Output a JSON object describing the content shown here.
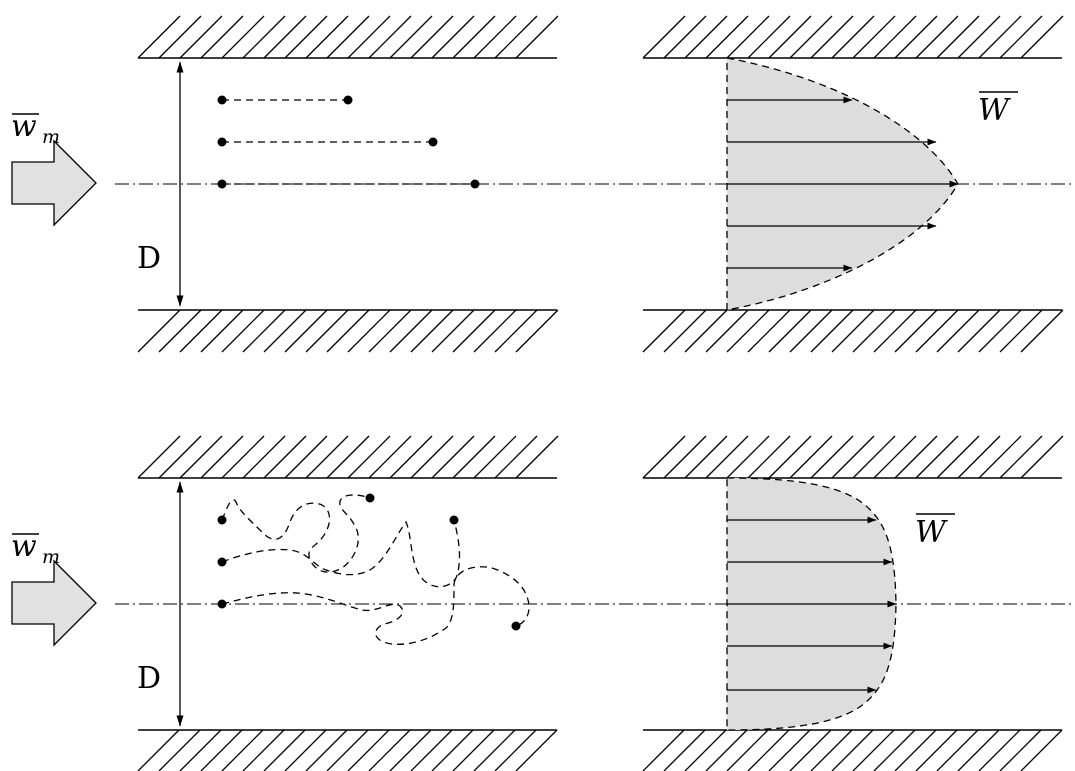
{
  "laminar": {
    "diameter_label": "D",
    "inlet_label": {
      "symbol": "w",
      "subscript": "m"
    },
    "profile_label": "W"
  },
  "turbulent": {
    "diameter_label": "D",
    "inlet_label": {
      "symbol": "w",
      "subscript": "m"
    },
    "profile_label": "W"
  }
}
